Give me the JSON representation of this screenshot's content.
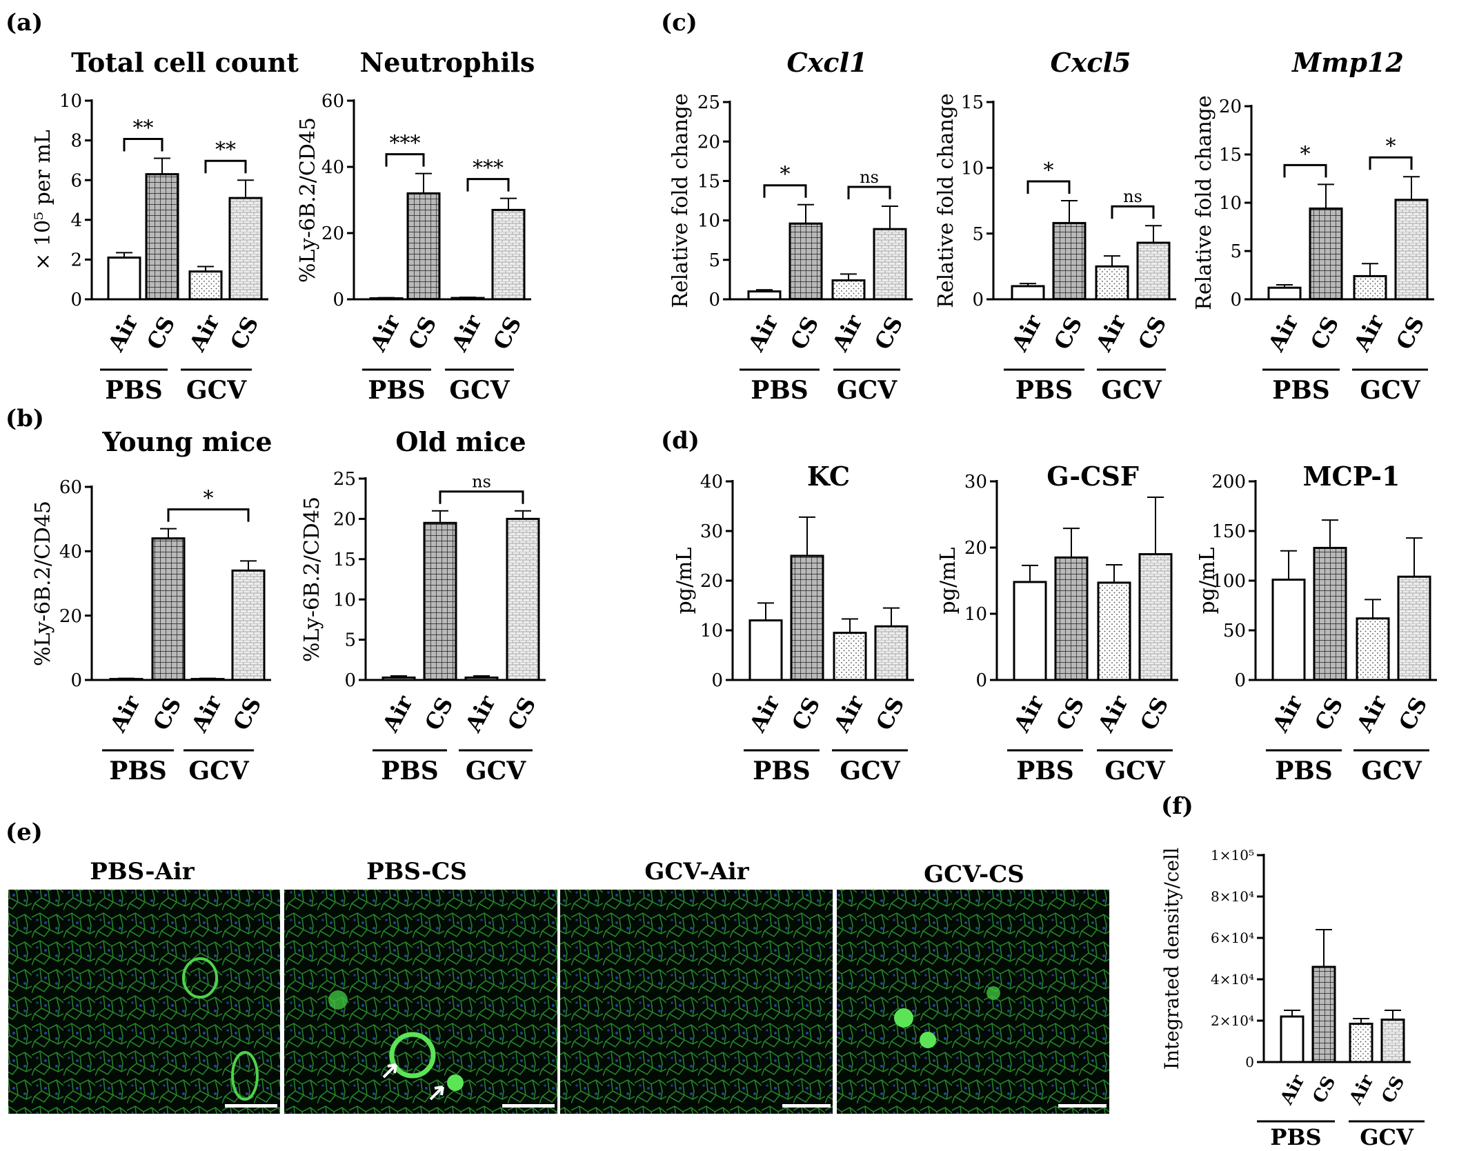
{
  "panel_letters": [
    "(a)",
    "(b)",
    "(c)",
    "(d)",
    "(e)",
    "(f)"
  ],
  "group_labels": [
    "PBS",
    "GCV"
  ],
  "bar_labels": [
    "Air",
    "CS",
    "Air",
    "CS"
  ],
  "chart_data": [
    {
      "id": "a1",
      "type": "bar",
      "title": "Total cell count",
      "ylabel": "× 10⁵ per mL",
      "ylim": [
        0,
        10
      ],
      "yticks": [
        0,
        2,
        4,
        6,
        8,
        10
      ],
      "categories": [
        "PBS Air",
        "PBS CS",
        "GCV Air",
        "GCV CS"
      ],
      "values": [
        2.1,
        6.3,
        1.4,
        5.1
      ],
      "errors": [
        0.25,
        0.8,
        0.25,
        0.9
      ],
      "significance": [
        {
          "between": [
            0,
            1
          ],
          "label": "**"
        },
        {
          "between": [
            2,
            3
          ],
          "label": "**"
        }
      ]
    },
    {
      "id": "a2",
      "type": "bar",
      "title": "Neutrophils",
      "ylabel": "%Ly-6B.2/CD45",
      "ylim": [
        0,
        60
      ],
      "yticks": [
        0,
        20,
        40,
        60
      ],
      "categories": [
        "PBS Air",
        "PBS CS",
        "GCV Air",
        "GCV CS"
      ],
      "values": [
        0.3,
        32,
        0.4,
        27
      ],
      "errors": [
        0.2,
        6,
        0.2,
        3.5
      ],
      "significance": [
        {
          "between": [
            0,
            1
          ],
          "label": "***"
        },
        {
          "between": [
            2,
            3
          ],
          "label": "***"
        }
      ]
    },
    {
      "id": "b1",
      "type": "bar",
      "title": "Young mice",
      "ylabel": "%Ly-6B.2/CD45",
      "ylim": [
        0,
        60
      ],
      "yticks": [
        0,
        20,
        40,
        60
      ],
      "categories": [
        "PBS Air",
        "PBS CS",
        "GCV Air",
        "GCV CS"
      ],
      "values": [
        0.3,
        44,
        0.3,
        34
      ],
      "errors": [
        0.2,
        3,
        0.2,
        3
      ],
      "significance": [
        {
          "between": [
            1,
            3
          ],
          "label": "*"
        }
      ]
    },
    {
      "id": "b2",
      "type": "bar",
      "title": "Old mice",
      "ylabel": "%Ly-6B.2/CD45",
      "ylim": [
        0,
        25
      ],
      "yticks": [
        0,
        5,
        10,
        15,
        20,
        25
      ],
      "categories": [
        "PBS Air",
        "PBS CS",
        "GCV Air",
        "GCV CS"
      ],
      "values": [
        0.3,
        19.5,
        0.3,
        20
      ],
      "errors": [
        0.2,
        1.5,
        0.2,
        1
      ],
      "significance": [
        {
          "between": [
            1,
            3
          ],
          "label": "ns"
        }
      ]
    },
    {
      "id": "c1",
      "type": "bar",
      "title": "Cxcl1",
      "ylabel": "Relative fold change",
      "ylim": [
        0,
        25
      ],
      "yticks": [
        0,
        5,
        10,
        15,
        20,
        25
      ],
      "categories": [
        "PBS Air",
        "PBS CS",
        "GCV Air",
        "GCV CS"
      ],
      "values": [
        1,
        9.6,
        2.4,
        8.9
      ],
      "errors": [
        0.2,
        2.4,
        0.8,
        2.9
      ],
      "significance": [
        {
          "between": [
            0,
            1
          ],
          "label": "*"
        },
        {
          "between": [
            2,
            3
          ],
          "label": "ns"
        }
      ]
    },
    {
      "id": "c2",
      "type": "bar",
      "title": "Cxcl5",
      "ylabel": "Relative fold change",
      "ylim": [
        0,
        15
      ],
      "yticks": [
        0,
        5,
        10,
        15
      ],
      "categories": [
        "PBS Air",
        "PBS CS",
        "GCV Air",
        "GCV CS"
      ],
      "values": [
        1,
        5.8,
        2.5,
        4.3
      ],
      "errors": [
        0.2,
        1.7,
        0.8,
        1.3
      ],
      "significance": [
        {
          "between": [
            0,
            1
          ],
          "label": "*"
        },
        {
          "between": [
            2,
            3
          ],
          "label": "ns"
        }
      ]
    },
    {
      "id": "c3",
      "type": "bar",
      "title": "Mmp12",
      "ylabel": "Relative fold change",
      "ylim": [
        0,
        20
      ],
      "yticks": [
        0,
        5,
        10,
        15,
        20
      ],
      "categories": [
        "PBS Air",
        "PBS CS",
        "GCV Air",
        "GCV CS"
      ],
      "values": [
        1.2,
        9.4,
        2.4,
        10.3
      ],
      "errors": [
        0.3,
        2.5,
        1.3,
        2.4
      ],
      "significance": [
        {
          "between": [
            0,
            1
          ],
          "label": "*"
        },
        {
          "between": [
            2,
            3
          ],
          "label": "*"
        }
      ]
    },
    {
      "id": "d1",
      "type": "bar",
      "title": "KC",
      "ylabel": "pg/mL",
      "ylim": [
        0,
        40
      ],
      "yticks": [
        0,
        10,
        20,
        30,
        40
      ],
      "categories": [
        "PBS Air",
        "PBS CS",
        "GCV Air",
        "GCV CS"
      ],
      "values": [
        12,
        25,
        9.5,
        10.8
      ],
      "errors": [
        3.5,
        7.8,
        2.8,
        3.7
      ],
      "significance": []
    },
    {
      "id": "d2",
      "type": "bar",
      "title": "G-CSF",
      "ylabel": "pg/mL",
      "ylim": [
        0,
        30
      ],
      "yticks": [
        0,
        10,
        20,
        30
      ],
      "categories": [
        "PBS Air",
        "PBS CS",
        "GCV Air",
        "GCV CS"
      ],
      "values": [
        14.8,
        18.5,
        14.7,
        19
      ],
      "errors": [
        2.5,
        4.4,
        2.7,
        8.6
      ],
      "significance": []
    },
    {
      "id": "d3",
      "type": "bar",
      "title": "MCP-1",
      "ylabel": "pg/mL",
      "ylim": [
        0,
        200
      ],
      "yticks": [
        0,
        50,
        100,
        150,
        200
      ],
      "categories": [
        "PBS Air",
        "PBS CS",
        "GCV Air",
        "GCV CS"
      ],
      "values": [
        101,
        133,
        62,
        104
      ],
      "errors": [
        29,
        28,
        19,
        39
      ],
      "significance": []
    },
    {
      "id": "f",
      "type": "bar",
      "title": "",
      "ylabel": "Integrated density/cell",
      "ylim": [
        0,
        100000
      ],
      "yticks": [
        0,
        20000,
        40000,
        60000,
        80000,
        100000
      ],
      "ytick_labels": [
        "0",
        "2×10⁴",
        "4×10⁴",
        "6×10⁴",
        "8×10⁴",
        "1×10⁵"
      ],
      "categories": [
        "PBS Air",
        "PBS CS",
        "GCV Air",
        "GCV CS"
      ],
      "values": [
        22000,
        46000,
        18500,
        20500
      ],
      "errors": [
        3000,
        18000,
        2500,
        4500
      ],
      "significance": []
    }
  ],
  "micrographs": [
    {
      "label": "PBS-Air"
    },
    {
      "label": "PBS-CS"
    },
    {
      "label": "GCV-Air"
    },
    {
      "label": "GCV-CS"
    }
  ]
}
